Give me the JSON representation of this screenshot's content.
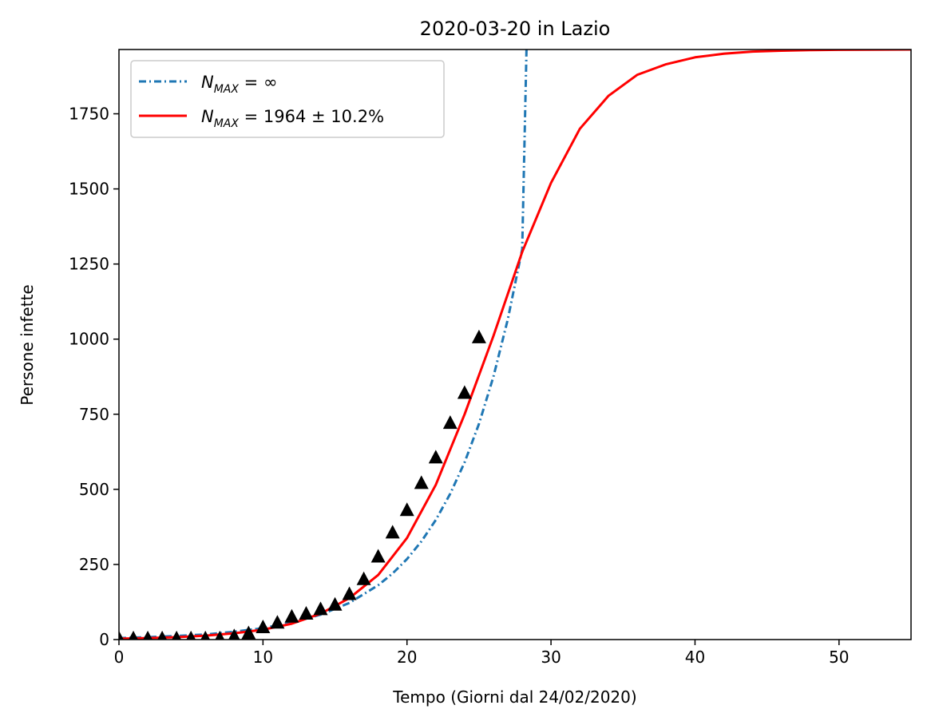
{
  "chart_data": {
    "type": "line",
    "title": "2020-03-20 in Lazio",
    "xlabel": "Tempo (Giorni dal 24/02/2020)",
    "ylabel": "Persone infette",
    "xlim": [
      0,
      55
    ],
    "ylim": [
      0,
      1964
    ],
    "xticks": [
      0,
      10,
      20,
      30,
      40,
      50
    ],
    "yticks": [
      0,
      250,
      500,
      750,
      1000,
      1250,
      1500,
      1750
    ],
    "grid": false,
    "legend_position": "top-left",
    "legend": [
      {
        "id": "exp",
        "main": "N",
        "sub": "MAX",
        "rest": " = ∞"
      },
      {
        "id": "log",
        "main": "N",
        "sub": "MAX",
        "rest": " = 1964 ± 10.2%"
      }
    ],
    "series": [
      {
        "style": "dash-dot",
        "color": "#1f77b4",
        "x": [
          0,
          2,
          4,
          6,
          8,
          10,
          12,
          14,
          16,
          18,
          19,
          20,
          21,
          22,
          23,
          24,
          25,
          26,
          27,
          28,
          28.3
        ],
        "y": [
          5,
          8,
          12,
          17,
          26,
          38,
          56,
          83,
          122,
          181,
          220,
          268,
          327,
          398,
          485,
          590,
          718,
          874,
          1066,
          1299,
          1964
        ]
      },
      {
        "style": "solid",
        "color": "#ff0000",
        "x": [
          0,
          2,
          4,
          6,
          8,
          10,
          12,
          14,
          16,
          18,
          20,
          22,
          24,
          26,
          28,
          30,
          32,
          34,
          36,
          38,
          40,
          42,
          44,
          46,
          48,
          50,
          55
        ],
        "y": [
          3,
          5,
          8,
          13,
          21,
          33,
          53,
          86,
          138,
          215,
          338,
          515,
          750,
          1010,
          1290,
          1520,
          1700,
          1810,
          1880,
          1915,
          1938,
          1950,
          1957,
          1960,
          1962,
          1963,
          1964
        ]
      },
      {
        "style": "markers",
        "marker": "triangle",
        "color": "#000000",
        "x": [
          0,
          1,
          2,
          3,
          4,
          5,
          6,
          7,
          8,
          9,
          10,
          11,
          12,
          13,
          14,
          15,
          16,
          17,
          18,
          19,
          20,
          21,
          22,
          23,
          24,
          25
        ],
        "y": [
          3,
          3,
          3,
          3,
          3,
          3,
          3,
          3,
          10,
          20,
          40,
          55,
          75,
          85,
          100,
          115,
          150,
          200,
          275,
          355,
          430,
          520,
          605,
          720,
          820,
          1005
        ]
      }
    ]
  }
}
